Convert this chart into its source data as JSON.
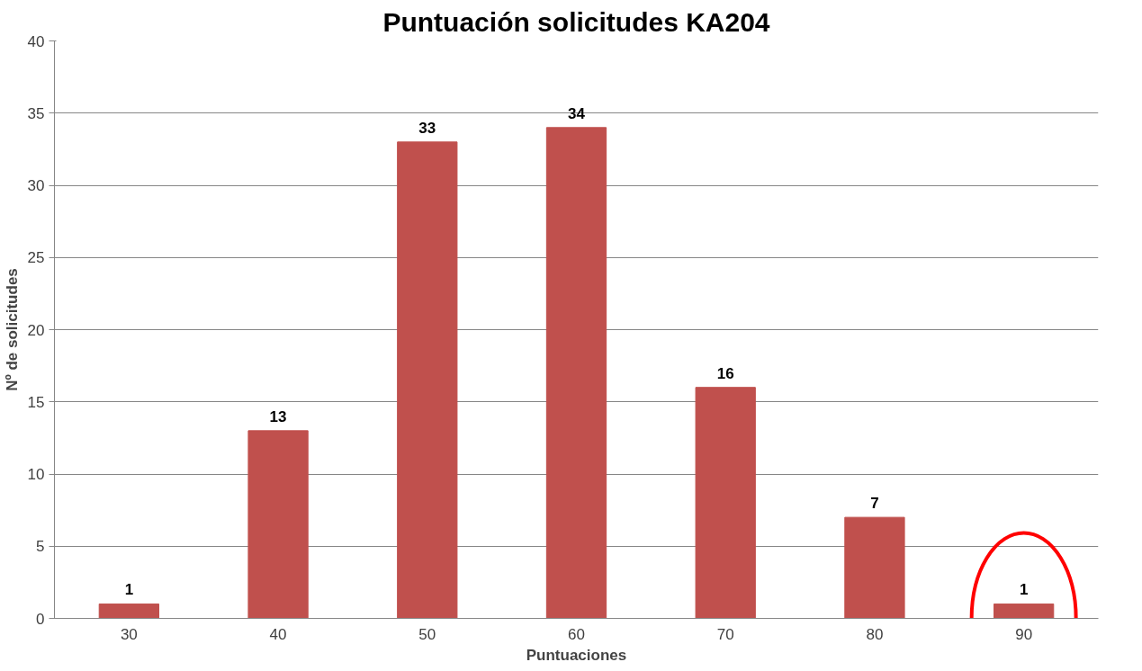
{
  "chart_data": {
    "type": "bar",
    "title": "Puntuación solicitudes KA204",
    "xlabel": "Puntuaciones",
    "ylabel": "Nº de solicitudes",
    "categories": [
      "30",
      "40",
      "50",
      "60",
      "70",
      "80",
      "90"
    ],
    "values": [
      1,
      13,
      33,
      34,
      16,
      7,
      1
    ],
    "color": "#c0504d",
    "ylim": [
      0,
      40
    ],
    "yticks": [
      0,
      5,
      10,
      15,
      20,
      25,
      30,
      35,
      40
    ],
    "grid": "y",
    "data_labels": true
  }
}
